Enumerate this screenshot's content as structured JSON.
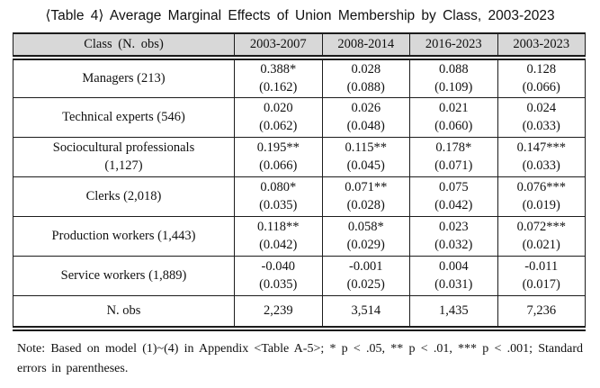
{
  "title": "⟨Table 4⟩ Average Marginal Effects of Union Membership by Class, 2003-2023",
  "colors": {
    "header_bg": "#d8d8d8",
    "border": "#1c1c1c",
    "text": "#111111",
    "background": "#ffffff"
  },
  "table": {
    "header": [
      "Class (N. obs)",
      "2003-2007",
      "2008-2014",
      "2016-2023",
      "2003-2023"
    ],
    "rows": [
      {
        "label": "Managers (213)",
        "sublabel": "",
        "cells": [
          {
            "est": "0.388*",
            "se": "(0.162)"
          },
          {
            "est": "0.028",
            "se": "(0.088)"
          },
          {
            "est": "0.088",
            "se": "(0.109)"
          },
          {
            "est": "0.128",
            "se": "(0.066)"
          }
        ]
      },
      {
        "label": "Technical experts (546)",
        "sublabel": "",
        "cells": [
          {
            "est": "0.020",
            "se": "(0.062)"
          },
          {
            "est": "0.026",
            "se": "(0.048)"
          },
          {
            "est": "0.021",
            "se": "(0.060)"
          },
          {
            "est": "0.024",
            "se": "(0.033)"
          }
        ]
      },
      {
        "label": "Sociocultural professionals",
        "sublabel": "(1,127)",
        "cells": [
          {
            "est": "0.195**",
            "se": "(0.066)"
          },
          {
            "est": "0.115**",
            "se": "(0.045)"
          },
          {
            "est": "0.178*",
            "se": "(0.071)"
          },
          {
            "est": "0.147***",
            "se": "(0.033)"
          }
        ]
      },
      {
        "label": "Clerks (2,018)",
        "sublabel": "",
        "cells": [
          {
            "est": "0.080*",
            "se": "(0.035)"
          },
          {
            "est": "0.071**",
            "se": "(0.028)"
          },
          {
            "est": "0.075",
            "se": "(0.042)"
          },
          {
            "est": "0.076***",
            "se": "(0.019)"
          }
        ]
      },
      {
        "label": "Production workers (1,443)",
        "sublabel": "",
        "cells": [
          {
            "est": "0.118**",
            "se": "(0.042)"
          },
          {
            "est": "0.058*",
            "se": "(0.029)"
          },
          {
            "est": "0.023",
            "se": "(0.032)"
          },
          {
            "est": "0.072***",
            "se": "(0.021)"
          }
        ]
      },
      {
        "label": "Service workers (1,889)",
        "sublabel": "",
        "cells": [
          {
            "est": "-0.040",
            "se": "(0.035)"
          },
          {
            "est": "-0.001",
            "se": "(0.025)"
          },
          {
            "est": "0.004",
            "se": "(0.031)"
          },
          {
            "est": "-0.011",
            "se": "(0.017)"
          }
        ]
      }
    ],
    "footer_row": {
      "label": "N. obs",
      "values": [
        "2,239",
        "3,514",
        "1,435",
        "7,236"
      ]
    }
  },
  "note": "Note: Based on model (1)~(4) in Appendix <Table A-5>; * p < .05, ** p < .01, *** p < .001; Standard errors in parentheses."
}
